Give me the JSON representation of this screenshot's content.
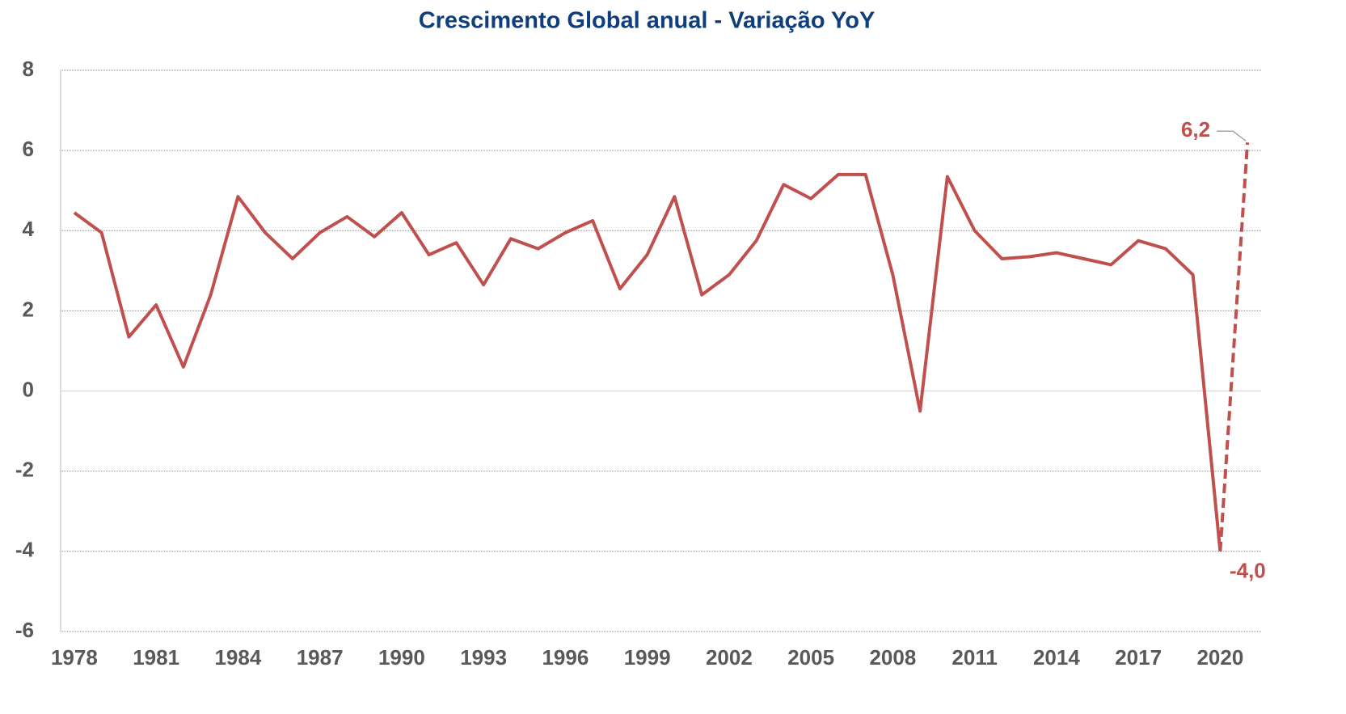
{
  "chart_data": {
    "type": "line",
    "title": "Crescimento Global anual  - Variação YoY",
    "x": [
      1978,
      1979,
      1980,
      1981,
      1982,
      1983,
      1984,
      1985,
      1986,
      1987,
      1988,
      1989,
      1990,
      1991,
      1992,
      1993,
      1994,
      1995,
      1996,
      1997,
      1998,
      1999,
      2000,
      2001,
      2002,
      2003,
      2004,
      2005,
      2006,
      2007,
      2008,
      2009,
      2010,
      2011,
      2012,
      2013,
      2014,
      2015,
      2016,
      2017,
      2018,
      2019,
      2020,
      2021
    ],
    "series": [
      {
        "color": "#c0504d",
        "values": [
          4.45,
          3.95,
          1.35,
          2.15,
          0.6,
          2.4,
          4.85,
          3.95,
          3.3,
          3.95,
          4.35,
          3.85,
          4.45,
          3.4,
          3.7,
          2.65,
          3.8,
          3.55,
          3.95,
          4.25,
          2.55,
          3.4,
          4.85,
          2.4,
          2.9,
          3.75,
          5.15,
          4.8,
          5.4,
          5.4,
          2.9,
          -0.5,
          5.35,
          4.0,
          3.3,
          3.35,
          3.45,
          3.3,
          3.15,
          3.75,
          3.55,
          2.9,
          -4.0,
          6.2
        ],
        "value_labels": [
          null,
          null,
          null,
          null,
          null,
          null,
          null,
          null,
          null,
          null,
          null,
          null,
          null,
          null,
          null,
          null,
          null,
          null,
          null,
          null,
          null,
          null,
          null,
          null,
          null,
          null,
          null,
          null,
          null,
          null,
          null,
          null,
          null,
          null,
          null,
          null,
          null,
          null,
          null,
          null,
          null,
          null,
          "-4,0",
          "6,2"
        ],
        "dashed_from_x": 2020
      }
    ],
    "xlim": [
      1977.5,
      2021.5
    ],
    "xticks": [
      1978,
      1981,
      1984,
      1987,
      1990,
      1993,
      1996,
      1999,
      2002,
      2005,
      2008,
      2011,
      2014,
      2017,
      2020
    ],
    "ylim": [
      -6,
      8
    ],
    "yticks": [
      -6,
      -4,
      -2,
      0,
      2,
      4,
      6,
      8
    ],
    "grid": true
  }
}
